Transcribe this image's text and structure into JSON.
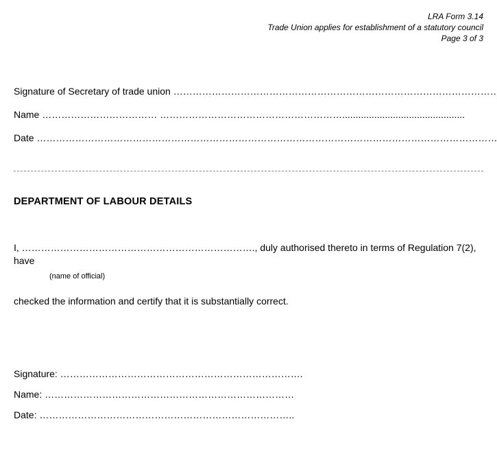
{
  "header": {
    "form_id": "LRA Form 3.14",
    "form_title": "Trade Union applies for establishment of a statutory council",
    "page_indicator": "Page 3 of 3"
  },
  "upper_fields": {
    "signature_label": "Signature of Secretary of trade union",
    "signature_dots": "  ……………………………………………………………………………………………",
    "name_label": "Name",
    "name_dots": "  ………………………………   …………………………………………………..............................................",
    "date_label": "Date",
    "date_dots": "  ………………………………………………………………………………………………………………………………………"
  },
  "section": {
    "title": "DEPARTMENT OF LABOUR DETAILS"
  },
  "declaration": {
    "prefix": "I, ",
    "name_dots": "……………………………………………………………….",
    "suffix": ", duly authorised thereto in terms of Regulation 7(2), have",
    "caption": "(name of official)",
    "certify_line": "checked the information and certify that it is substantially correct."
  },
  "lower_fields": {
    "signature_label": "Signature:",
    "signature_dots": "   ………………………………………………………………….",
    "name_label": "Name:",
    "name_dots": "  ……………………………………………………………………",
    "date_label": "Date:",
    "date_dots": "  …………………………………………………………………….."
  },
  "style": {
    "background_color": "#ffffff",
    "text_color": "#000000",
    "divider_color": "#888888",
    "base_font_size_pt": 10.5,
    "header_font_size_pt": 9,
    "header_font_style": "italic",
    "title_font_weight": "bold"
  }
}
